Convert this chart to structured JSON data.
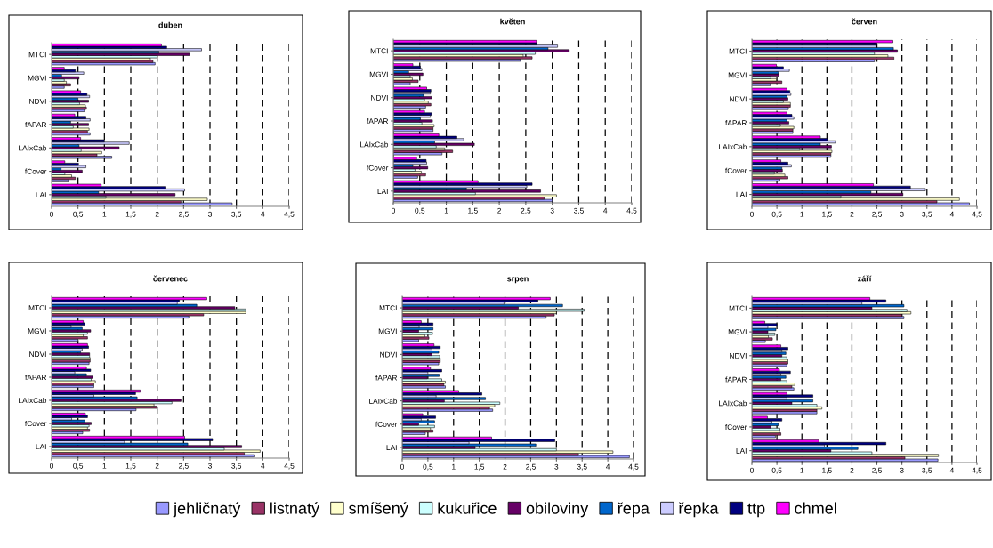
{
  "chart_data": [
    {
      "type": "bar",
      "orientation": "horizontal",
      "title": "duben",
      "categories": [
        "MTCI",
        "MGVI",
        "NDVI",
        "fAPAR",
        "LAIxCab",
        "fCover",
        "LAI"
      ],
      "xlim": [
        0,
        4.5
      ],
      "xticks": [
        0,
        {
          "value": 0.5,
          "label": "0,5"
        },
        1,
        {
          "value": 1.5,
          "label": "1,5"
        },
        2,
        {
          "value": 2.5,
          "label": "2,5"
        },
        3,
        {
          "value": 3.5,
          "label": "3,5"
        },
        4,
        {
          "value": 4.5,
          "label": "4,5"
        }
      ],
      "grid": "x",
      "legend": "bottom",
      "series": [
        {
          "name": "jehličnatý",
          "color": "#9999ff",
          "values": [
            1.96,
            0.24,
            0.62,
            0.73,
            1.14,
            0.32,
            3.42
          ]
        },
        {
          "name": "listnatý",
          "color": "#993366",
          "values": [
            1.92,
            0.36,
            0.66,
            0.68,
            0.86,
            0.45,
            2.45
          ]
        },
        {
          "name": "smíšený",
          "color": "#ffffcc",
          "values": [
            1.87,
            0.28,
            0.64,
            0.71,
            0.95,
            0.38,
            2.95
          ]
        },
        {
          "name": "kukuřice",
          "color": "#ccffff",
          "values": [
            2.0,
            0.24,
            0.53,
            0.41,
            0.56,
            0.25,
            1.03
          ]
        },
        {
          "name": "obiloviny",
          "color": "#660066",
          "values": [
            2.61,
            0.52,
            0.7,
            0.7,
            1.28,
            0.58,
            2.34
          ]
        },
        {
          "name": "řepa",
          "color": "#0066cc",
          "values": [
            2.03,
            0.19,
            0.5,
            0.36,
            0.52,
            0.18,
            0.89
          ]
        },
        {
          "name": "řepka",
          "color": "#ccccff",
          "values": [
            2.84,
            0.61,
            0.72,
            0.73,
            1.47,
            0.65,
            2.52
          ]
        },
        {
          "name": "ttp",
          "color": "#000080",
          "values": [
            2.18,
            0.45,
            0.67,
            0.65,
            1.0,
            0.51,
            2.15
          ]
        },
        {
          "name": "chmel",
          "color": "#ff00ff",
          "values": [
            2.08,
            0.24,
            0.55,
            0.44,
            0.55,
            0.25,
            0.94
          ]
        }
      ]
    },
    {
      "type": "bar",
      "orientation": "horizontal",
      "title": "květen",
      "categories": [
        "MTCI",
        "MGVI",
        "NDVI",
        "fAPAR",
        "LAIxCab",
        "fCover",
        "LAI"
      ],
      "xlim": [
        0,
        4.5
      ],
      "xticks": [
        0,
        {
          "value": 0.5,
          "label": "0,5"
        },
        1,
        {
          "value": 1.5,
          "label": "1,5"
        },
        2,
        {
          "value": 2.5,
          "label": "2,5"
        },
        3,
        {
          "value": 3.5,
          "label": "3,5"
        },
        4,
        {
          "value": 4.5,
          "label": "4,5"
        }
      ],
      "grid": "x",
      "series": [
        {
          "color": "#9999ff",
          "values": [
            2.4,
            0.32,
            0.61,
            0.75,
            0.92,
            0.46,
            3.0
          ]
        },
        {
          "color": "#993366",
          "values": [
            2.62,
            0.47,
            0.71,
            0.75,
            1.12,
            0.61,
            2.85
          ]
        },
        {
          "color": "#ffffcc",
          "values": [
            2.45,
            0.36,
            0.66,
            0.77,
            0.97,
            0.53,
            3.08
          ]
        },
        {
          "color": "#ccffff",
          "values": [
            2.68,
            0.32,
            0.59,
            0.54,
            0.81,
            0.41,
            1.55
          ]
        },
        {
          "color": "#660066",
          "values": [
            3.32,
            0.56,
            0.72,
            0.74,
            1.53,
            0.65,
            2.78
          ]
        },
        {
          "color": "#0066cc",
          "values": [
            2.92,
            0.29,
            0.57,
            0.51,
            0.78,
            0.37,
            1.38
          ]
        },
        {
          "color": "#ccccff",
          "values": [
            3.1,
            0.54,
            0.7,
            0.7,
            1.33,
            0.63,
            2.52
          ]
        },
        {
          "color": "#000080",
          "values": [
            2.71,
            0.51,
            0.71,
            0.72,
            1.2,
            0.62,
            2.62
          ]
        },
        {
          "color": "#ff00ff",
          "values": [
            2.7,
            0.37,
            0.63,
            0.59,
            0.86,
            0.44,
            1.6
          ]
        }
      ]
    },
    {
      "type": "bar",
      "orientation": "horizontal",
      "title": "červen",
      "categories": [
        "MTCI",
        "MGVI",
        "NDVI",
        "fAPAR",
        "LAIxCab",
        "fCover",
        "LAI"
      ],
      "xlim": [
        0,
        4.5
      ],
      "xticks": [
        0,
        {
          "value": 0.5,
          "label": "0,5"
        },
        1,
        {
          "value": 1.5,
          "label": "1,5"
        },
        2,
        {
          "value": 2.5,
          "label": "2,5"
        },
        3,
        {
          "value": 3.5,
          "label": "3,5"
        },
        4,
        {
          "value": 4.5,
          "label": "4,5"
        }
      ],
      "grid": "x",
      "series": [
        {
          "color": "#9999ff",
          "values": [
            2.45,
            0.37,
            0.73,
            0.82,
            1.58,
            0.56,
            4.35
          ]
        },
        {
          "color": "#993366",
          "values": [
            2.84,
            0.6,
            0.77,
            0.82,
            1.58,
            0.72,
            3.7
          ]
        },
        {
          "color": "#ffffcc",
          "values": [
            2.72,
            0.49,
            0.77,
            0.84,
            1.6,
            0.66,
            4.15
          ]
        },
        {
          "color": "#ccffff",
          "values": [
            2.45,
            0.38,
            0.63,
            0.57,
            0.96,
            0.45,
            1.78
          ]
        },
        {
          "color": "#660066",
          "values": [
            2.91,
            0.54,
            0.72,
            0.74,
            1.59,
            0.61,
            3.02
          ]
        },
        {
          "color": "#0066cc",
          "values": [
            2.83,
            0.53,
            0.7,
            0.7,
            1.37,
            0.6,
            2.38
          ]
        },
        {
          "color": "#ccccff",
          "values": [
            2.48,
            0.75,
            0.78,
            0.84,
            1.67,
            0.79,
            3.47
          ]
        },
        {
          "color": "#000080",
          "values": [
            2.5,
            0.63,
            0.76,
            0.8,
            1.51,
            0.72,
            3.17
          ]
        },
        {
          "color": "#ff00ff",
          "values": [
            2.82,
            0.49,
            0.7,
            0.7,
            1.37,
            0.58,
            2.43
          ]
        }
      ]
    },
    {
      "type": "bar",
      "orientation": "horizontal",
      "title": "červenec",
      "categories": [
        "MTCI",
        "MGVI",
        "NDVI",
        "fAPAR",
        "LAIxCab",
        "fCover",
        "LAI"
      ],
      "xlim": [
        0,
        4.5
      ],
      "xticks": [
        0,
        {
          "value": 0.5,
          "label": "0,5"
        },
        1,
        {
          "value": 1.5,
          "label": "1,5"
        },
        2,
        {
          "value": 2.5,
          "label": "2,5"
        },
        3,
        {
          "value": 3.5,
          "label": "3,5"
        },
        4,
        {
          "value": 4.5,
          "label": "4,5"
        }
      ],
      "grid": "x",
      "series": [
        {
          "color": "#9999ff",
          "values": [
            2.6,
            0.5,
            0.71,
            0.8,
            1.6,
            0.59,
            3.85
          ]
        },
        {
          "color": "#993366",
          "values": [
            2.88,
            0.68,
            0.73,
            0.8,
            2.0,
            0.72,
            3.65
          ]
        },
        {
          "color": "#ffffcc",
          "values": [
            3.68,
            0.6,
            0.73,
            0.83,
            1.94,
            0.68,
            3.95
          ]
        },
        {
          "color": "#ccffff",
          "values": [
            3.68,
            0.68,
            0.72,
            0.75,
            2.28,
            0.71,
            3.27
          ]
        },
        {
          "color": "#660066",
          "values": [
            3.47,
            0.74,
            0.72,
            0.78,
            2.45,
            0.75,
            3.6
          ]
        },
        {
          "color": "#0066cc",
          "values": [
            2.75,
            0.58,
            0.55,
            0.66,
            1.62,
            0.63,
            2.58
          ]
        },
        {
          "color": "#ccccff",
          "values": [
            2.38,
            0.37,
            0.58,
            0.44,
            0.8,
            0.38,
            1.38
          ]
        },
        {
          "color": "#000080",
          "values": [
            2.42,
            0.63,
            0.7,
            0.74,
            1.59,
            0.68,
            3.05
          ]
        },
        {
          "color": "#ff00ff",
          "values": [
            2.94,
            0.6,
            0.68,
            0.66,
            1.68,
            0.64,
            2.52
          ]
        }
      ]
    },
    {
      "type": "bar",
      "orientation": "horizontal",
      "title": "srpen",
      "categories": [
        "MTCI",
        "MGVI",
        "NDVI",
        "fAPAR",
        "LAIxCab",
        "fCover",
        "LAI"
      ],
      "xlim": [
        0,
        4.5
      ],
      "xticks": [
        0,
        {
          "value": 0.5,
          "label": "0,5"
        },
        1,
        {
          "value": 1.5,
          "label": "1,5"
        },
        2,
        {
          "value": 2.5,
          "label": "2,5"
        },
        3,
        {
          "value": 3.5,
          "label": "3,5"
        },
        4,
        {
          "value": 4.5,
          "label": "4,5"
        }
      ],
      "grid": "x",
      "series": [
        {
          "color": "#9999ff",
          "values": [
            2.8,
            0.32,
            0.71,
            0.84,
            1.76,
            0.45,
            4.42
          ]
        },
        {
          "color": "#993366",
          "values": [
            2.96,
            0.52,
            0.74,
            0.81,
            1.7,
            0.6,
            3.43
          ]
        },
        {
          "color": "#ffffcc",
          "values": [
            3.0,
            0.44,
            0.74,
            0.84,
            1.8,
            0.55,
            4.1
          ]
        },
        {
          "color": "#ccffff",
          "values": [
            3.54,
            0.59,
            0.73,
            0.77,
            1.9,
            0.63,
            3.0
          ]
        },
        {
          "color": "#660066",
          "values": [
            2.26,
            0.32,
            0.58,
            0.49,
            0.82,
            0.32,
            1.42
          ]
        },
        {
          "color": "#0066cc",
          "values": [
            3.12,
            0.6,
            0.71,
            0.72,
            1.62,
            0.63,
            2.6
          ]
        },
        {
          "color": "#ccccff",
          "values": [
            1.98,
            0.33,
            0.58,
            0.5,
            0.66,
            0.37,
            1.3
          ]
        },
        {
          "color": "#000080",
          "values": [
            2.64,
            0.6,
            0.74,
            0.77,
            1.55,
            0.65,
            2.97
          ]
        },
        {
          "color": "#ff00ff",
          "values": [
            2.88,
            0.37,
            0.62,
            0.55,
            1.1,
            0.4,
            1.74
          ]
        }
      ]
    },
    {
      "type": "bar",
      "orientation": "horizontal",
      "title": "září",
      "categories": [
        "MTCI",
        "MGVI",
        "NDVI",
        "fAPAR",
        "LAIxCab",
        "fCover",
        "LAI"
      ],
      "xlim": [
        0,
        4.5
      ],
      "xticks": [
        0,
        {
          "value": 0.5,
          "label": "0,5"
        },
        1,
        {
          "value": 1.5,
          "label": "1,5"
        },
        2,
        {
          "value": 2.5,
          "label": "2,5"
        },
        3,
        {
          "value": 3.5,
          "label": "3,5"
        },
        4,
        {
          "value": 4.5,
          "label": "4,5"
        }
      ],
      "grid": "x",
      "series": [
        {
          "color": "#9999ff",
          "values": [
            3.04,
            0.27,
            0.7,
            0.84,
            1.3,
            0.47,
            3.72
          ]
        },
        {
          "color": "#993366",
          "values": [
            3.0,
            0.41,
            0.72,
            0.8,
            1.3,
            0.58,
            3.06
          ]
        },
        {
          "color": "#ffffcc",
          "values": [
            3.18,
            0.33,
            0.72,
            0.86,
            1.4,
            0.55,
            3.73
          ]
        },
        {
          "color": "#ccffff",
          "values": [
            3.1,
            0.46,
            0.7,
            0.7,
            1.3,
            0.56,
            2.4
          ]
        },
        {
          "color": "#660066",
          "values": [
            2.4,
            0.32,
            0.6,
            0.58,
            0.8,
            0.38,
            1.58
          ]
        },
        {
          "color": "#0066cc",
          "values": [
            3.04,
            0.48,
            0.68,
            0.68,
            1.22,
            0.53,
            2.12
          ]
        },
        {
          "color": "#ccccff",
          "values": [
            2.2,
            0.32,
            0.6,
            0.58,
            0.7,
            0.4,
            1.45
          ]
        },
        {
          "color": "#000080",
          "values": [
            2.68,
            0.5,
            0.72,
            0.77,
            1.22,
            0.6,
            2.68
          ]
        },
        {
          "color": "#ff00ff",
          "values": [
            2.36,
            0.26,
            0.58,
            0.55,
            0.7,
            0.31,
            1.34
          ]
        }
      ]
    }
  ]
}
